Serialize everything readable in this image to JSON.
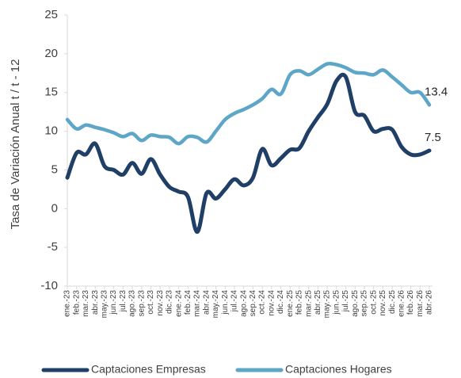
{
  "chart_data": {
    "type": "line",
    "y_label": "Tasa de Variación Anual t / t - 12",
    "categories": [
      "ene.-23",
      "feb.-23",
      "mar.-23",
      "abr.-23",
      "may.-23",
      "jun.-23",
      "jul.-23",
      "ago.-23",
      "sep.-23",
      "oct.-23",
      "nov.-23",
      "dic.-23",
      "ene.-24",
      "feb.-24",
      "mar.-24",
      "abr.-24",
      "may.-24",
      "jun.-24",
      "jul.-24",
      "ago.-24",
      "sep.-24",
      "oct.-24",
      "nov.-24",
      "dic.-24",
      "ene.-25",
      "feb.-25",
      "mar.-25",
      "abr.-25",
      "may.-25",
      "jun.-25",
      "jul.-25",
      "ago.-25",
      "sep.-25",
      "oct.-25",
      "nov.-25",
      "dic.-25",
      "ene.-26",
      "feb.-26",
      "mar.-26",
      "abr.-26"
    ],
    "series": [
      {
        "name": "Captaciones Empresas",
        "color": "#203f66",
        "values": [
          4,
          7.2,
          7,
          8.4,
          5.5,
          5,
          4.4,
          5.9,
          4.5,
          6.4,
          4.4,
          2.8,
          2.2,
          1.5,
          -3,
          2,
          1.3,
          2.5,
          3.8,
          3,
          4,
          7.7,
          5.6,
          6.5,
          7.6,
          7.8,
          10,
          11.8,
          13.5,
          16.5,
          17,
          12.5,
          12,
          10,
          10.3,
          10.2,
          8,
          7,
          7,
          7.5
        ]
      },
      {
        "name": "Captaciones Hogares",
        "color": "#5da6c8",
        "values": [
          11.5,
          10.3,
          10.8,
          10.5,
          10.2,
          9.8,
          9.3,
          9.7,
          8.8,
          9.5,
          9.3,
          9.2,
          8.4,
          9.3,
          9.2,
          8.6,
          10,
          11.5,
          12.3,
          12.8,
          13.4,
          14.2,
          15.4,
          14.8,
          17.3,
          17.8,
          17.3,
          18,
          18.7,
          18.6,
          18.2,
          17.6,
          17.5,
          17.3,
          17.9,
          17,
          16,
          15,
          15,
          13.4
        ]
      }
    ],
    "ylim": [
      -10,
      25
    ],
    "yticks": [
      -10,
      -5,
      0,
      5,
      10,
      15,
      20,
      25
    ],
    "grid": false
  }
}
